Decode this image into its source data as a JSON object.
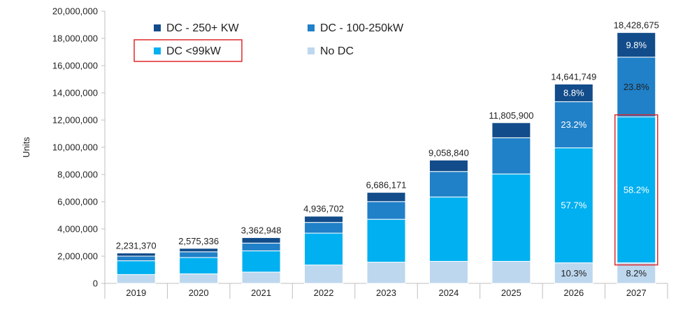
{
  "chart_data": {
    "type": "bar",
    "stacked": true,
    "categories": [
      "2019",
      "2020",
      "2021",
      "2022",
      "2023",
      "2024",
      "2025",
      "2026",
      "2027"
    ],
    "series": [
      {
        "name": "No DC",
        "color": "#bdd7ee",
        "values": [
          650000,
          700000,
          830000,
          1350000,
          1560000,
          1620000,
          1620000,
          1510000,
          1510000
        ]
      },
      {
        "name": "DC <99kW",
        "color": "#00b0f0",
        "values": [
          1010000,
          1200000,
          1560000,
          2340000,
          3150000,
          4730000,
          6420000,
          8450000,
          10720000
        ]
      },
      {
        "name": "DC - 100-250kW",
        "color": "#2080c8",
        "values": [
          340000,
          420000,
          570000,
          790000,
          1300000,
          1870000,
          2660000,
          3390000,
          4390000
        ]
      },
      {
        "name": "DC -  250+ KW",
        "color": "#124c8a",
        "values": [
          231370,
          255336,
          402948,
          456702,
          676171,
          838840,
          1105900,
          1291749,
          1808675
        ]
      }
    ],
    "totals": [
      "2,231,370",
      "2,575,336",
      "3,362,948",
      "4,936,702",
      "6,686,171",
      "9,058,840",
      "11,805,900",
      "14,641,749",
      "18,428,675"
    ],
    "segment_labels": [
      {
        "category": "2026",
        "series": "No DC",
        "text": "10.3%",
        "color": "#222222"
      },
      {
        "category": "2026",
        "series": "DC <99kW",
        "text": "57.7%",
        "color": "#ffffff"
      },
      {
        "category": "2026",
        "series": "DC - 100-250kW",
        "text": "23.2%",
        "color": "#ffffff"
      },
      {
        "category": "2026",
        "series": "DC -  250+ KW",
        "text": "8.8%",
        "color": "#ffffff"
      },
      {
        "category": "2027",
        "series": "No DC",
        "text": "8.2%",
        "color": "#222222"
      },
      {
        "category": "2027",
        "series": "DC <99kW",
        "text": "58.2%",
        "color": "#ffffff"
      },
      {
        "category": "2027",
        "series": "DC - 100-250kW",
        "text": "23.8%",
        "color": "#222222"
      },
      {
        "category": "2027",
        "series": "DC -  250+ KW",
        "text": "9.8%",
        "color": "#ffffff"
      }
    ],
    "ylabel": "Units",
    "ylim": [
      0,
      20000000
    ],
    "yticks": [
      "0",
      "2,000,000",
      "4,000,000",
      "6,000,000",
      "8,000,000",
      "10,000,000",
      "12,000,000",
      "14,000,000",
      "16,000,000",
      "18,000,000",
      "20,000,000"
    ],
    "legend": [
      {
        "label": "DC -  250+ KW",
        "color": "#124c8a"
      },
      {
        "label": "DC - 100-250kW",
        "color": "#2080c8"
      },
      {
        "label": "DC <99kW",
        "color": "#00b0f0",
        "highlighted": true
      },
      {
        "label": "No DC",
        "color": "#bdd7ee"
      }
    ],
    "legend_placement": "top-left",
    "highlight_color": "#e0292b",
    "highlighted_segment": {
      "category": "2027",
      "series": "DC <99kW"
    },
    "grid": false
  }
}
